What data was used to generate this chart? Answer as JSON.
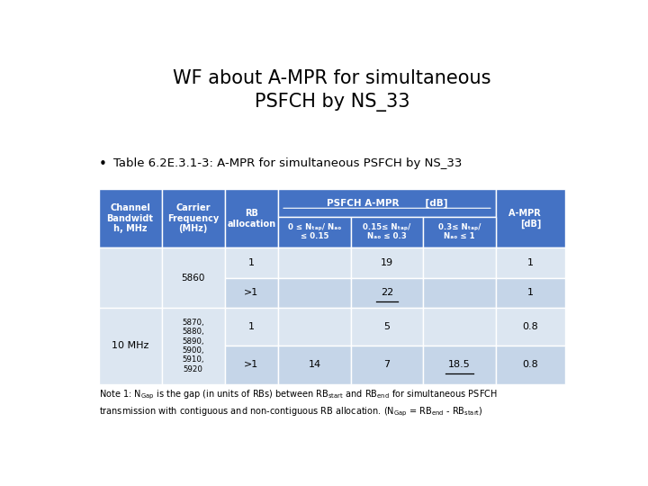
{
  "title": "WF about A-MPR for simultaneous\nPSFCH by NS_33",
  "bullet": "Table 6.2E.3.1-3: A-MPR for simultaneous PSFCH by NS_33",
  "header_bg": "#4472C4",
  "header_fg": "#FFFFFF",
  "row_bg_light": "#dce6f1",
  "row_bg_dark": "#c5d5e8",
  "title_color": "#000000",
  "bg_color": "#FFFFFF",
  "col_props": [
    0.135,
    0.135,
    0.115,
    0.155,
    0.155,
    0.155,
    0.15
  ]
}
